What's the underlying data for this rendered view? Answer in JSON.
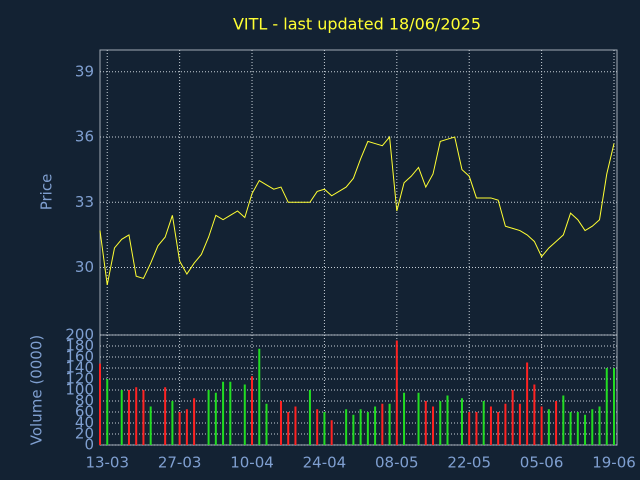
{
  "chart_data": [
    {
      "type": "line",
      "title": "VITL - last updated 18/06/2025",
      "ylabel": "Price",
      "color": "#ffff33",
      "values": [
        31.7,
        29.2,
        30.9,
        31.3,
        31.5,
        29.6,
        29.5,
        30.2,
        31.0,
        31.4,
        32.4,
        30.3,
        29.7,
        30.2,
        30.6,
        31.4,
        32.4,
        32.2,
        32.4,
        32.6,
        32.3,
        33.4,
        34.0,
        33.8,
        33.6,
        33.7,
        33.0,
        33.0,
        33.0,
        33.0,
        33.5,
        33.6,
        33.3,
        33.5,
        33.7,
        34.1,
        35.0,
        35.8,
        35.7,
        35.6,
        36.0,
        32.6,
        33.9,
        34.2,
        34.6,
        33.7,
        34.3,
        35.8,
        35.9,
        36.0,
        34.5,
        34.2,
        33.2,
        33.2,
        33.2,
        33.1,
        31.9,
        31.8,
        31.7,
        31.5,
        31.2,
        30.5,
        30.9,
        31.2,
        31.5,
        32.5,
        32.2,
        31.7,
        31.9,
        32.2,
        34.3,
        35.7
      ],
      "ylim": [
        26.9,
        40
      ],
      "yticks": [
        30,
        33,
        36,
        39
      ],
      "grid": true
    },
    {
      "type": "bar",
      "ylabel": "Volume (0000)",
      "categories": [
        null,
        "13-03",
        null,
        null,
        null,
        null,
        null,
        null,
        null,
        null,
        null,
        "27-03",
        null,
        null,
        null,
        null,
        null,
        null,
        null,
        null,
        null,
        "10-04",
        null,
        null,
        null,
        null,
        null,
        null,
        null,
        null,
        null,
        "24-04",
        null,
        null,
        null,
        null,
        null,
        null,
        null,
        null,
        null,
        "08-05",
        null,
        null,
        null,
        null,
        null,
        null,
        null,
        null,
        null,
        "22-05",
        null,
        null,
        null,
        null,
        null,
        null,
        null,
        null,
        null,
        "05-06",
        null,
        null,
        null,
        null,
        null,
        null,
        null,
        null,
        null,
        "19-06"
      ],
      "values": [
        148,
        120,
        null,
        100,
        100,
        105,
        100,
        70,
        null,
        105,
        80,
        60,
        65,
        85,
        null,
        100,
        95,
        115,
        115,
        null,
        110,
        125,
        175,
        75,
        null,
        80,
        60,
        70,
        null,
        100,
        65,
        60,
        45,
        null,
        65,
        55,
        65,
        60,
        70,
        75,
        75,
        190,
        95,
        null,
        95,
        80,
        70,
        80,
        90,
        null,
        85,
        60,
        60,
        80,
        70,
        60,
        75,
        100,
        75,
        150,
        110,
        70,
        65,
        80,
        90,
        60,
        60,
        55,
        65,
        70,
        140,
        140
      ],
      "colors": [
        "#ff2222",
        "#22dd22",
        null,
        "#22dd22",
        "#ff2222",
        "#ff2222",
        "#ff2222",
        "#22dd22",
        null,
        "#ff2222",
        "#22dd22",
        "#ff2222",
        "#ff2222",
        "#ff2222",
        null,
        "#22dd22",
        "#22dd22",
        "#22dd22",
        "#22dd22",
        null,
        "#22dd22",
        "#ff2222",
        "#22dd22",
        "#22dd22",
        null,
        "#ff2222",
        "#ff2222",
        "#ff2222",
        null,
        "#22dd22",
        "#ff2222",
        "#22dd22",
        "#ff2222",
        null,
        "#22dd22",
        "#22dd22",
        "#22dd22",
        "#22dd22",
        "#22dd22",
        "#ff2222",
        "#22dd22",
        "#ff2222",
        "#22dd22",
        null,
        "#22dd22",
        "#ff2222",
        "#ff2222",
        "#22dd22",
        "#22dd22",
        null,
        "#22dd22",
        "#ff2222",
        "#ff2222",
        "#22dd22",
        "#ff2222",
        "#ff2222",
        "#ff2222",
        "#ff2222",
        "#ff2222",
        "#ff2222",
        "#ff2222",
        "#ff2222",
        "#22dd22",
        "#ff2222",
        "#22dd22",
        "#22dd22",
        "#22dd22",
        "#22dd22",
        "#22dd22",
        "#22dd22",
        "#22dd22",
        "#22dd22"
      ],
      "ylim": [
        0,
        200
      ],
      "yticks": [
        0,
        20,
        40,
        60,
        80,
        100,
        120,
        140,
        160,
        180,
        200
      ],
      "grid": true
    }
  ]
}
